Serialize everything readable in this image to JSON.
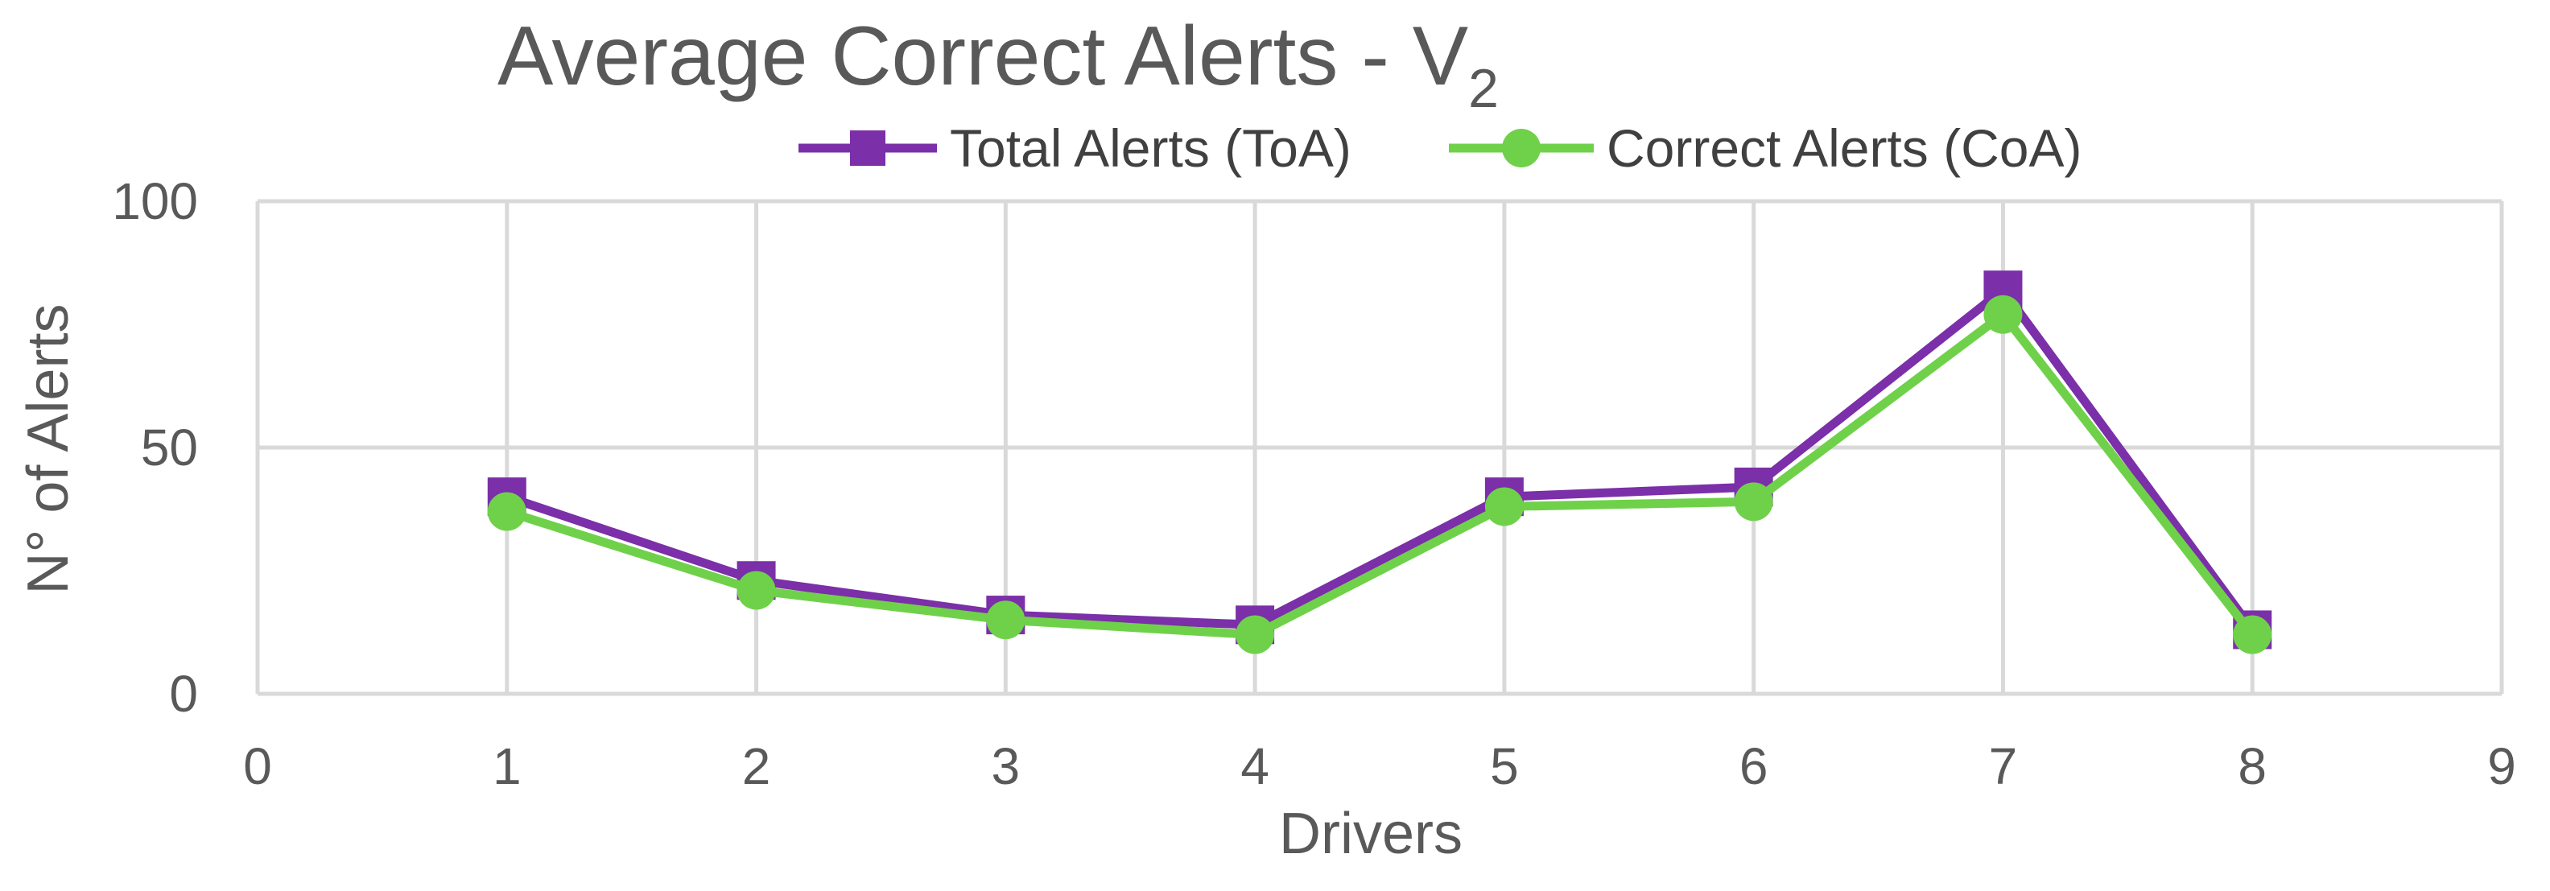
{
  "chart_data": {
    "type": "line",
    "title": "Average Correct Alerts - V",
    "title_subscript": "2",
    "xlabel": "Drivers",
    "ylabel": "N° of Alerts",
    "xlim": [
      0,
      9
    ],
    "ylim": [
      0,
      100
    ],
    "x_ticks": [
      "0",
      "1",
      "2",
      "3",
      "4",
      "5",
      "6",
      "7",
      "8",
      "9"
    ],
    "y_ticks": [
      "0",
      "50",
      "100"
    ],
    "grid": true,
    "legend_position": "top",
    "series": [
      {
        "name": "Total Alerts (ToA)",
        "color": "#7B2FA8",
        "marker": "square",
        "x": [
          1,
          2,
          3,
          4,
          5,
          6,
          7,
          8
        ],
        "y": [
          40,
          23,
          16,
          14,
          40,
          42,
          82,
          13
        ]
      },
      {
        "name": "Correct Alerts (CoA)",
        "color": "#6FD14A",
        "marker": "circle",
        "x": [
          1,
          2,
          3,
          4,
          5,
          6,
          7,
          8
        ],
        "y": [
          37,
          21,
          15,
          12,
          38,
          39,
          77,
          12
        ]
      }
    ]
  }
}
